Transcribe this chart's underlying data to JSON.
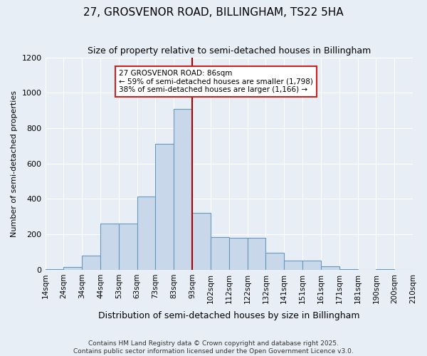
{
  "title": "27, GROSVENOR ROAD, BILLINGHAM, TS22 5HA",
  "subtitle": "Size of property relative to semi-detached houses in Billingham",
  "xlabel": "Distribution of semi-detached houses by size in Billingham",
  "ylabel": "Number of semi-detached properties",
  "bar_labels": [
    "14sqm",
    "24sqm",
    "34sqm",
    "44sqm",
    "53sqm",
    "63sqm",
    "73sqm",
    "83sqm",
    "93sqm",
    "102sqm",
    "112sqm",
    "122sqm",
    "132sqm",
    "141sqm",
    "151sqm",
    "161sqm",
    "171sqm",
    "181sqm",
    "190sqm",
    "200sqm",
    "210sqm"
  ],
  "bar_values": [
    5,
    15,
    80,
    260,
    260,
    415,
    710,
    910,
    320,
    185,
    180,
    180,
    95,
    50,
    50,
    20,
    5,
    0,
    5,
    0
  ],
  "bar_color": "#c8d8ea",
  "bar_edge_color": "#6699bb",
  "property_bin_index": 7,
  "vline_color": "#aa0000",
  "annotation_title": "27 GROSVENOR ROAD: 86sqm",
  "annotation_line1": "← 59% of semi-detached houses are smaller (1,798)",
  "annotation_line2": "38% of semi-detached houses are larger (1,166) →",
  "annotation_box_color": "#ffffff",
  "annotation_box_edge": "#cc2222",
  "footer_line1": "Contains HM Land Registry data © Crown copyright and database right 2025.",
  "footer_line2": "Contains public sector information licensed under the Open Government Licence v3.0.",
  "ylim": [
    0,
    1200
  ],
  "background_color": "#e8eef5",
  "grid_color": "#ffffff"
}
